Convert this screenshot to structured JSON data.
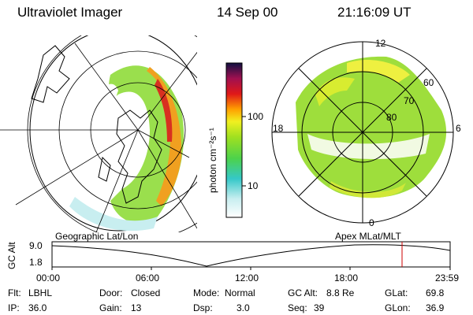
{
  "header": {
    "title": "Ultraviolet Imager",
    "date": "14 Sep 00",
    "time": "21:16:09 UT"
  },
  "colorbar": {
    "unit_label": "photon cm⁻²s⁻¹",
    "ticks": [
      "100",
      "10"
    ],
    "scale": "log"
  },
  "left_panel": {
    "label": "Geographic Lat/Lon"
  },
  "right_panel": {
    "label": "Apex  MLat/MLT",
    "mlt_labels": {
      "top": "12",
      "left": "18",
      "right": "6",
      "bottom": "0"
    },
    "lat_labels": [
      "60",
      "70",
      "80"
    ]
  },
  "timeline": {
    "ylabel": "GC Alt",
    "ytick_top": "9.0",
    "ytick_bottom": "1.8",
    "xticks": [
      "00:00",
      "06:00",
      "12:00",
      "18:00",
      "23:59"
    ],
    "current_marker_color": "#cc0000"
  },
  "footer": {
    "row1": [
      {
        "key": "Flt:",
        "val": "LBHL"
      },
      {
        "key": "Door:",
        "val": "Closed"
      },
      {
        "key": "Mode:",
        "val": "Normal"
      },
      {
        "key": "GC Alt:",
        "val": "8.8 Re"
      },
      {
        "key": "GLat:",
        "val": "69.8"
      }
    ],
    "row2": [
      {
        "key": "IP:",
        "val": "36.0"
      },
      {
        "key": "Gain:",
        "val": "13"
      },
      {
        "key": "Dsp:",
        "val": "3.0"
      },
      {
        "key": "Seq:",
        "val": "39"
      },
      {
        "key": "GLon:",
        "val": "36.9"
      }
    ]
  }
}
